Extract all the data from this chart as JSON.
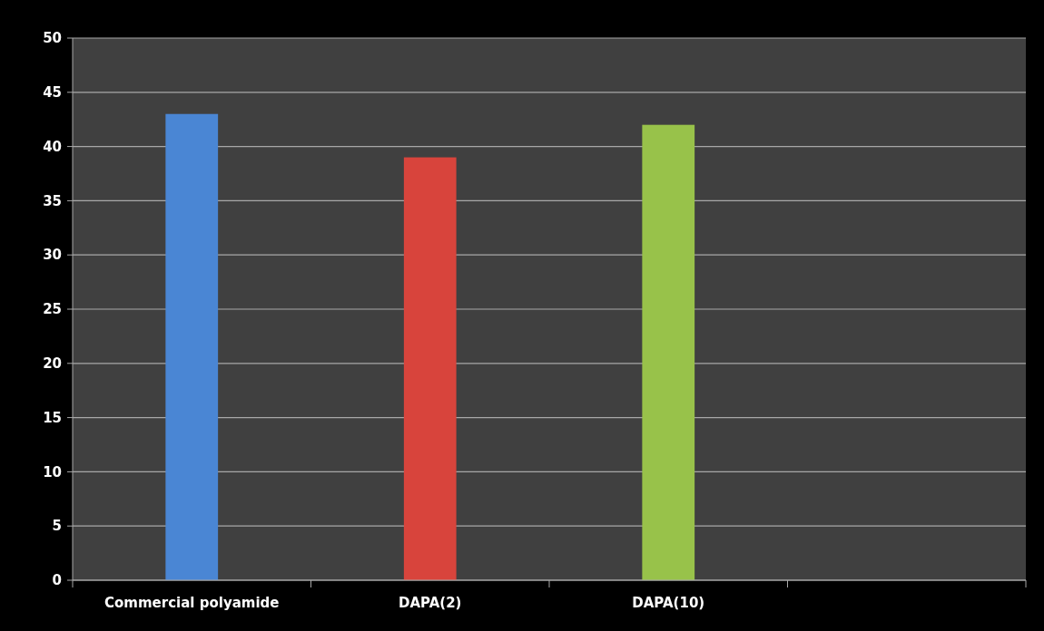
{
  "chart_data": {
    "type": "bar",
    "categories": [
      "Commercial polyamide",
      "DAPA(2)",
      "DAPA(10)",
      null
    ],
    "values": [
      43,
      39,
      42,
      null
    ],
    "colors": [
      "#4a86d4",
      "#d8443c",
      "#98c24a",
      null
    ],
    "ylim": [
      0,
      50
    ],
    "yticks": [
      0,
      5,
      10,
      15,
      20,
      25,
      30,
      35,
      40,
      45,
      50
    ],
    "grid": "y"
  }
}
